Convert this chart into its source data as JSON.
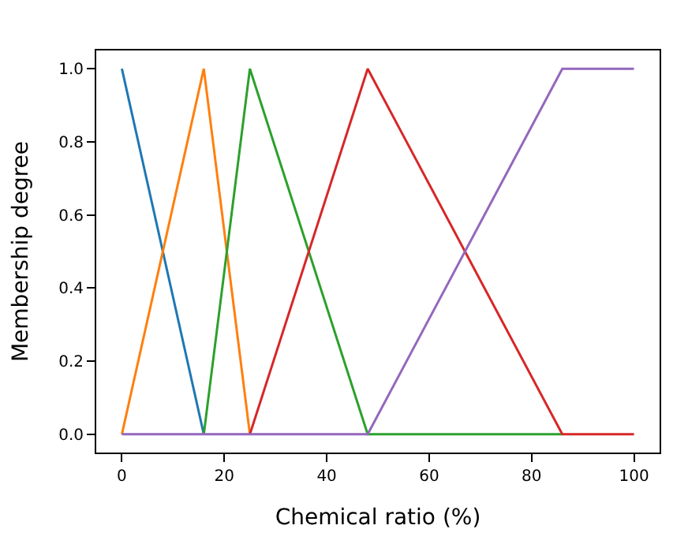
{
  "chart_data": {
    "type": "line",
    "xlabel": "Chemical ratio (%)",
    "ylabel": "Membership degree",
    "xlim": [
      -5,
      105
    ],
    "xticks": [
      0,
      20,
      40,
      60,
      80,
      100
    ],
    "ylim": [
      -0.05,
      1.05
    ],
    "yticks": [
      {
        "value": 0,
        "label": "0.0"
      },
      {
        "value": 0.2,
        "label": "0.2"
      },
      {
        "value": 0.4,
        "label": "0.4"
      },
      {
        "value": 0.6,
        "label": "0.6"
      },
      {
        "value": 0.8,
        "label": "0.8"
      },
      {
        "value": 1,
        "label": "1.0"
      }
    ],
    "marker": "none",
    "line_style": "solid",
    "series": [
      {
        "color": "#1f77b4",
        "x": [
          0,
          16
        ],
        "values": [
          1,
          0
        ]
      },
      {
        "color": "#ff7f0e",
        "x": [
          0,
          16,
          25
        ],
        "values": [
          0,
          1,
          0
        ]
      },
      {
        "color": "#2ca02c",
        "x": [
          16,
          25,
          48,
          86
        ],
        "values": [
          0,
          1,
          0,
          0
        ]
      },
      {
        "color": "#d62728",
        "x": [
          25,
          48,
          86,
          100
        ],
        "values": [
          0,
          1,
          0,
          0
        ]
      },
      {
        "color": "#9467bd",
        "x": [
          0,
          48,
          86,
          100
        ],
        "values": [
          0,
          0,
          1,
          1
        ]
      }
    ]
  }
}
